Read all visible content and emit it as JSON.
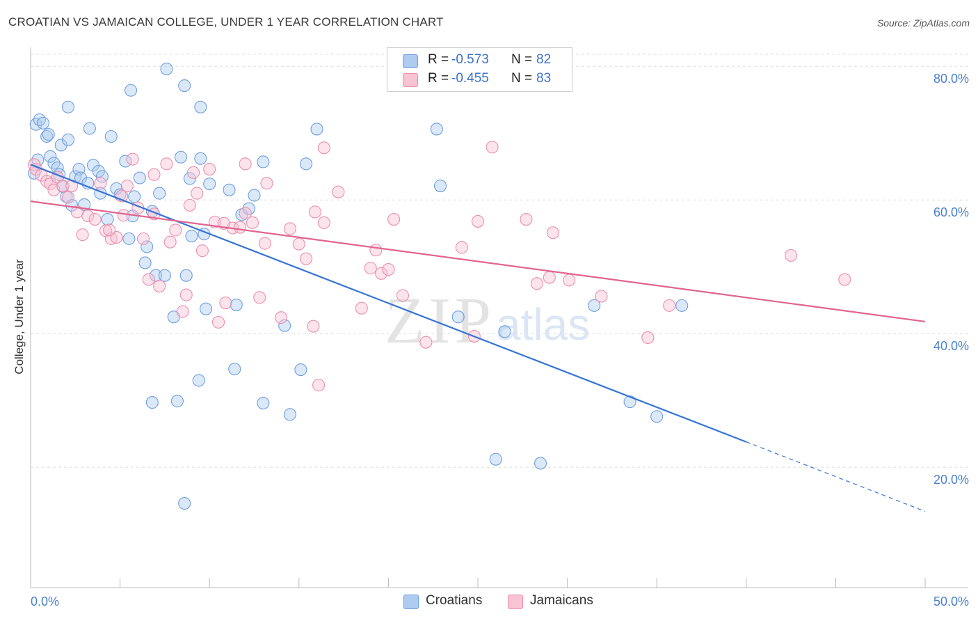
{
  "title": "CROATIAN VS JAMAICAN COLLEGE, UNDER 1 YEAR CORRELATION CHART",
  "source": "Source: ZipAtlas.com",
  "watermark": {
    "zip": "ZIP",
    "atlas": "atlas"
  },
  "legend": {
    "r_label": "R =",
    "n_label": "N =",
    "items": [
      {
        "r": "-0.573",
        "n": "82",
        "fill": "#aecbf0",
        "stroke": "#6f9fe0"
      },
      {
        "r": "-0.455",
        "n": "83",
        "fill": "#f8c4d4",
        "stroke": "#ea8fae"
      }
    ]
  },
  "bottom_legend": [
    "Croatians",
    "Jamaicans"
  ],
  "chart_data": {
    "type": "scatter",
    "title": "CROATIAN VS JAMAICAN COLLEGE, UNDER 1 YEAR CORRELATION CHART",
    "xlabel": "",
    "ylabel": "College, Under 1 year",
    "xlim": [
      0,
      50
    ],
    "ylim": [
      2,
      82
    ],
    "x_tick_labels": [
      "0.0%",
      "50.0%"
    ],
    "y_ticks": [
      20,
      40,
      60,
      80
    ],
    "y_tick_labels": [
      "20.0%",
      "40.0%",
      "60.0%",
      "80.0%"
    ],
    "grid": true,
    "legend_position": "top-center",
    "series": [
      {
        "name": "Croatians",
        "color": "#4a86d8",
        "trend": {
          "x0": 0,
          "y0": 65.3,
          "x1": 40,
          "y1": 23.8,
          "dashed_to_x": 50,
          "dashed_to_y": 13.4
        },
        "points": [
          [
            0.3,
            71.3
          ],
          [
            0.5,
            72.0
          ],
          [
            0.7,
            71.5
          ],
          [
            0.9,
            69.5
          ],
          [
            1.0,
            69.8
          ],
          [
            1.1,
            66.5
          ],
          [
            1.3,
            65.5
          ],
          [
            1.5,
            64.8
          ],
          [
            1.7,
            68.2
          ],
          [
            1.8,
            62.0
          ],
          [
            2.1,
            69.0
          ],
          [
            2.3,
            59.2
          ],
          [
            2.5,
            63.5
          ],
          [
            2.7,
            64.6
          ],
          [
            2.8,
            63.3
          ],
          [
            3.2,
            62.5
          ],
          [
            3.5,
            65.2
          ],
          [
            3.8,
            64.3
          ],
          [
            3.9,
            61.0
          ],
          [
            4.0,
            63.5
          ],
          [
            4.3,
            57.1
          ],
          [
            4.5,
            69.5
          ],
          [
            4.8,
            61.7
          ],
          [
            5.0,
            60.8
          ],
          [
            5.3,
            65.8
          ],
          [
            5.5,
            54.2
          ],
          [
            5.7,
            57.6
          ],
          [
            5.8,
            60.5
          ],
          [
            6.1,
            63.3
          ],
          [
            6.4,
            50.6
          ],
          [
            6.5,
            53.0
          ],
          [
            6.8,
            58.3
          ],
          [
            7.0,
            48.7
          ],
          [
            7.2,
            61.0
          ],
          [
            7.5,
            48.7
          ],
          [
            8.0,
            42.5
          ],
          [
            8.4,
            66.4
          ],
          [
            8.7,
            48.7
          ],
          [
            8.9,
            63.2
          ],
          [
            9.0,
            54.6
          ],
          [
            9.5,
            66.2
          ],
          [
            9.7,
            54.9
          ],
          [
            9.8,
            43.7
          ],
          [
            10.0,
            62.4
          ],
          [
            11.1,
            61.5
          ],
          [
            11.5,
            44.3
          ],
          [
            11.8,
            57.8
          ],
          [
            12.2,
            58.7
          ],
          [
            12.5,
            60.7
          ],
          [
            13.0,
            65.7
          ],
          [
            14.2,
            41.2
          ],
          [
            15.4,
            65.4
          ],
          [
            16.0,
            70.6
          ],
          [
            7.6,
            79.6
          ],
          [
            5.6,
            76.4
          ],
          [
            2.1,
            73.9
          ],
          [
            3.3,
            70.7
          ],
          [
            22.7,
            70.6
          ],
          [
            22.9,
            62.1
          ],
          [
            23.9,
            42.5
          ],
          [
            26.5,
            40.3
          ],
          [
            31.5,
            44.2
          ],
          [
            33.5,
            29.8
          ],
          [
            35.0,
            27.6
          ],
          [
            26.0,
            21.2
          ],
          [
            28.5,
            20.6
          ],
          [
            8.6,
            14.6
          ],
          [
            6.8,
            29.7
          ],
          [
            8.2,
            29.9
          ],
          [
            9.4,
            33.0
          ],
          [
            11.4,
            34.7
          ],
          [
            13.0,
            29.6
          ],
          [
            14.5,
            27.9
          ],
          [
            15.1,
            34.6
          ],
          [
            9.5,
            73.9
          ],
          [
            8.6,
            77.1
          ],
          [
            0.2,
            64.0
          ],
          [
            0.4,
            66.0
          ],
          [
            2.0,
            60.5
          ],
          [
            3.0,
            59.3
          ],
          [
            1.6,
            63.8
          ],
          [
            36.4,
            44.2
          ]
        ]
      },
      {
        "name": "Jamaicans",
        "color": "#e8739c",
        "trend": {
          "x0": 0,
          "y0": 59.8,
          "x1": 50,
          "y1": 41.8
        },
        "points": [
          [
            0.2,
            65.3
          ],
          [
            0.3,
            64.6
          ],
          [
            0.6,
            63.7
          ],
          [
            0.9,
            62.8
          ],
          [
            1.1,
            62.4
          ],
          [
            1.3,
            61.5
          ],
          [
            1.5,
            63.4
          ],
          [
            1.8,
            62.1
          ],
          [
            2.1,
            60.4
          ],
          [
            2.3,
            62.1
          ],
          [
            2.6,
            58.2
          ],
          [
            2.9,
            54.8
          ],
          [
            3.2,
            57.6
          ],
          [
            3.6,
            57.1
          ],
          [
            3.9,
            62.5
          ],
          [
            4.2,
            55.4
          ],
          [
            4.5,
            54.2
          ],
          [
            4.8,
            54.4
          ],
          [
            5.1,
            60.6
          ],
          [
            5.4,
            62.1
          ],
          [
            5.7,
            66.1
          ],
          [
            6.0,
            58.8
          ],
          [
            6.3,
            54.2
          ],
          [
            6.6,
            48.1
          ],
          [
            6.9,
            57.9
          ],
          [
            7.2,
            47.1
          ],
          [
            7.6,
            65.4
          ],
          [
            7.8,
            53.7
          ],
          [
            8.1,
            55.5
          ],
          [
            8.5,
            43.3
          ],
          [
            8.7,
            45.8
          ],
          [
            8.9,
            59.2
          ],
          [
            9.3,
            61.0
          ],
          [
            9.6,
            52.4
          ],
          [
            10.0,
            64.6
          ],
          [
            10.3,
            56.7
          ],
          [
            10.5,
            41.7
          ],
          [
            10.9,
            44.6
          ],
          [
            11.3,
            55.8
          ],
          [
            11.7,
            55.9
          ],
          [
            12.0,
            58.0
          ],
          [
            12.4,
            56.6
          ],
          [
            12.8,
            45.4
          ],
          [
            13.2,
            62.5
          ],
          [
            14.0,
            42.4
          ],
          [
            14.5,
            55.7
          ],
          [
            15.0,
            53.4
          ],
          [
            15.4,
            51.2
          ],
          [
            15.9,
            58.2
          ],
          [
            16.4,
            56.6
          ],
          [
            17.2,
            61.2
          ],
          [
            18.5,
            43.8
          ],
          [
            19.0,
            49.8
          ],
          [
            19.3,
            52.5
          ],
          [
            19.6,
            49.0
          ],
          [
            20.0,
            49.6
          ],
          [
            20.3,
            57.1
          ],
          [
            20.8,
            45.7
          ],
          [
            22.1,
            38.7
          ],
          [
            24.1,
            52.9
          ],
          [
            25.0,
            56.8
          ],
          [
            25.8,
            67.9
          ],
          [
            27.7,
            57.1
          ],
          [
            28.3,
            47.5
          ],
          [
            29.2,
            55.1
          ],
          [
            30.1,
            48.0
          ],
          [
            31.9,
            45.6
          ],
          [
            34.5,
            39.4
          ],
          [
            35.7,
            44.2
          ],
          [
            42.5,
            51.7
          ],
          [
            45.5,
            48.1
          ],
          [
            16.4,
            67.8
          ],
          [
            12.0,
            65.4
          ],
          [
            9.1,
            64.1
          ],
          [
            6.9,
            63.8
          ],
          [
            5.2,
            57.7
          ],
          [
            4.4,
            55.5
          ],
          [
            10.8,
            56.5
          ],
          [
            13.1,
            53.5
          ],
          [
            15.8,
            41.1
          ],
          [
            16.1,
            32.3
          ],
          [
            24.8,
            39.6
          ],
          [
            29.0,
            48.4
          ]
        ]
      }
    ]
  }
}
